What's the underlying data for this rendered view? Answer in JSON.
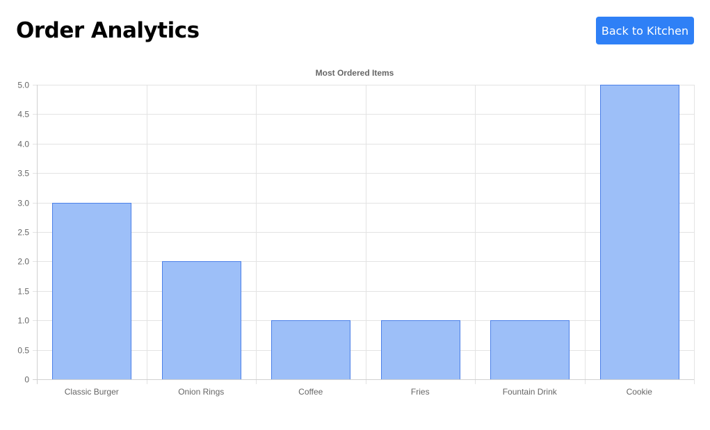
{
  "header": {
    "title": "Order Analytics",
    "back_button_label": "Back to Kitchen"
  },
  "colors": {
    "accent": "#2f80f6",
    "bar_fill": "#9dbff8",
    "bar_stroke": "#4a7fe8",
    "grid": "#e3e3e3",
    "tick_text": "#666666"
  },
  "chart_data": {
    "type": "bar",
    "title": "Most Ordered Items",
    "xlabel": "",
    "ylabel": "",
    "categories": [
      "Classic Burger",
      "Onion Rings",
      "Coffee",
      "Fries",
      "Fountain Drink",
      "Cookie"
    ],
    "values": [
      3,
      2,
      1,
      1,
      1,
      5
    ],
    "ylim": [
      0,
      5
    ],
    "yticks": [
      "0",
      "0.5",
      "1.0",
      "1.5",
      "2.0",
      "2.5",
      "3.0",
      "3.5",
      "4.0",
      "4.5",
      "5.0"
    ],
    "grid": true,
    "legend": "none"
  }
}
